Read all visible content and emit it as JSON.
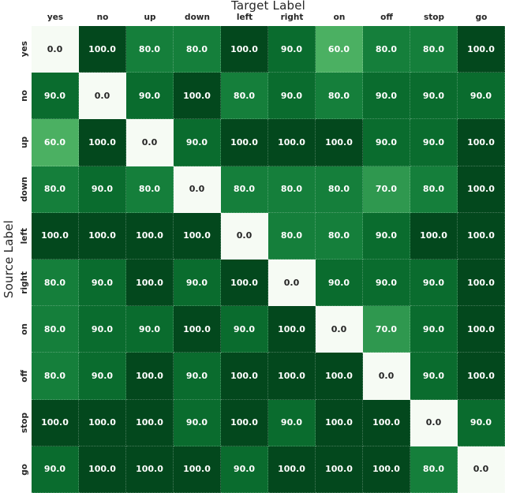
{
  "chart_data": {
    "type": "heatmap",
    "title": "",
    "xlabel": "Target Label",
    "ylabel": "Source Label",
    "x_tick_labels": [
      "yes",
      "no",
      "up",
      "down",
      "left",
      "right",
      "on",
      "off",
      "stop",
      "go"
    ],
    "y_tick_labels": [
      "yes",
      "no",
      "up",
      "down",
      "left",
      "right",
      "on",
      "off",
      "stop",
      "go"
    ],
    "values": [
      [
        0.0,
        100.0,
        80.0,
        80.0,
        100.0,
        90.0,
        60.0,
        80.0,
        80.0,
        100.0
      ],
      [
        90.0,
        0.0,
        90.0,
        100.0,
        80.0,
        90.0,
        80.0,
        90.0,
        90.0,
        90.0
      ],
      [
        60.0,
        100.0,
        0.0,
        90.0,
        100.0,
        100.0,
        100.0,
        90.0,
        90.0,
        100.0
      ],
      [
        80.0,
        90.0,
        80.0,
        0.0,
        80.0,
        80.0,
        80.0,
        70.0,
        80.0,
        100.0
      ],
      [
        100.0,
        100.0,
        100.0,
        100.0,
        0.0,
        80.0,
        80.0,
        90.0,
        100.0,
        100.0
      ],
      [
        80.0,
        90.0,
        100.0,
        90.0,
        100.0,
        0.0,
        90.0,
        90.0,
        90.0,
        100.0
      ],
      [
        80.0,
        90.0,
        90.0,
        100.0,
        90.0,
        100.0,
        0.0,
        70.0,
        90.0,
        100.0
      ],
      [
        80.0,
        90.0,
        100.0,
        90.0,
        100.0,
        100.0,
        100.0,
        0.0,
        90.0,
        100.0
      ],
      [
        100.0,
        100.0,
        100.0,
        90.0,
        100.0,
        90.0,
        100.0,
        100.0,
        0.0,
        90.0
      ],
      [
        90.0,
        100.0,
        100.0,
        100.0,
        90.0,
        100.0,
        100.0,
        100.0,
        80.0,
        0.0
      ]
    ],
    "value_range": [
      0,
      100
    ],
    "value_decimals": 1,
    "grid": "dotted-light",
    "legend_position": "none",
    "colormap": {
      "name": "Greens",
      "stops": {
        "0": "#f6fbf4",
        "60": "#4bb062",
        "70": "#2f984f",
        "80": "#157f3b",
        "90": "#0a6c2e",
        "100": "#03481d"
      }
    },
    "cell_text_color_on_light": "#262626",
    "cell_text_color_on_dark": "#ffffff",
    "axis_text_color": "#262626"
  }
}
